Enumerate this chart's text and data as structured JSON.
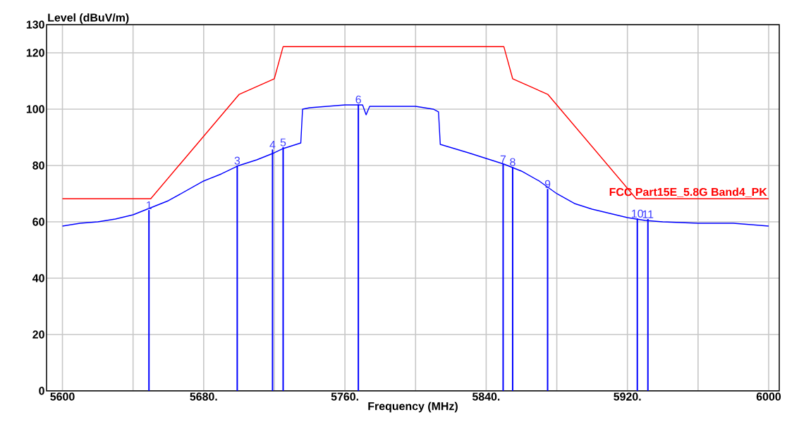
{
  "chart_data": {
    "type": "line",
    "xlabel": "Frequency (MHz)",
    "ylabel": "Level (dBuV/m)",
    "xlim": [
      5591,
      6006
    ],
    "ylim": [
      0,
      130
    ],
    "xticks": [
      {
        "value": 5600,
        "label": "5600"
      },
      {
        "value": 5640,
        "label": null
      },
      {
        "value": 5680,
        "label": "5680."
      },
      {
        "value": 5720,
        "label": null
      },
      {
        "value": 5760,
        "label": "5760."
      },
      {
        "value": 5800,
        "label": null
      },
      {
        "value": 5840,
        "label": "5840."
      },
      {
        "value": 5880,
        "label": null
      },
      {
        "value": 5920,
        "label": "5920."
      },
      {
        "value": 5960,
        "label": null
      },
      {
        "value": 6000,
        "label": "6000"
      }
    ],
    "yticks": [
      0,
      20,
      40,
      60,
      80,
      100,
      120,
      130
    ],
    "grid": true,
    "legend": false,
    "series": [
      {
        "color": "#0000ff",
        "x": [
          5600,
          5610,
          5620,
          5630,
          5640,
          5650,
          5660,
          5670,
          5680,
          5690,
          5700,
          5710,
          5720,
          5725,
          5730,
          5735,
          5736,
          5740,
          5760,
          5770,
          5772,
          5774,
          5790,
          5800,
          5810,
          5813,
          5814,
          5830,
          5840,
          5850,
          5860,
          5870,
          5880,
          5890,
          5900,
          5910,
          5920,
          5930,
          5940,
          5960,
          5980,
          5990,
          6000
        ],
        "values": [
          58.5,
          59.5,
          60,
          61,
          62.5,
          65,
          67.5,
          71,
          74.5,
          77,
          80,
          82,
          84.5,
          86,
          87,
          88,
          100,
          100.5,
          101.5,
          101.5,
          98,
          101,
          101,
          101,
          100,
          99,
          87.5,
          84.5,
          82.5,
          80.5,
          78,
          74.5,
          70,
          66.5,
          64.5,
          63,
          61.5,
          60.5,
          60,
          59.5,
          59.5,
          59,
          58.5
        ]
      },
      {
        "name": "FCC Part15E_5.8G Band4_PK",
        "color": "#ff0000",
        "x": [
          5600,
          5650,
          5700,
          5720,
          5725,
          5850,
          5855,
          5875,
          5925,
          6000
        ],
        "values": [
          68.2,
          68.2,
          105.2,
          110.8,
          122.2,
          122.2,
          110.8,
          105.2,
          68.2,
          68.2
        ]
      },
      {
        "type": "bar",
        "color": "#0000ff",
        "x": [
          5649,
          5699,
          5719,
          5725,
          5767.6,
          5849.6,
          5855,
          5874.8,
          5925.6,
          5931.6
        ],
        "values": [
          64.2,
          80,
          85.7,
          86.5,
          101.7,
          80.5,
          79.5,
          71.7,
          61.2,
          61
        ]
      }
    ],
    "annotations": [
      {
        "text": "1",
        "x": 5649,
        "y": 64.2
      },
      {
        "text": "3",
        "x": 5699,
        "y": 80
      },
      {
        "text": "4",
        "x": 5719,
        "y": 85.7
      },
      {
        "text": "5",
        "x": 5725,
        "y": 86.5
      },
      {
        "text": "6",
        "x": 5767.6,
        "y": 101.7
      },
      {
        "text": "7",
        "x": 5849.6,
        "y": 80.5
      },
      {
        "text": "8",
        "x": 5855,
        "y": 79.5
      },
      {
        "text": "9",
        "x": 5874.8,
        "y": 71.7
      },
      {
        "text": "10",
        "x": 5925.6,
        "y": 61.2
      },
      {
        "text": "11",
        "x": 5931.6,
        "y": 61
      }
    ]
  }
}
